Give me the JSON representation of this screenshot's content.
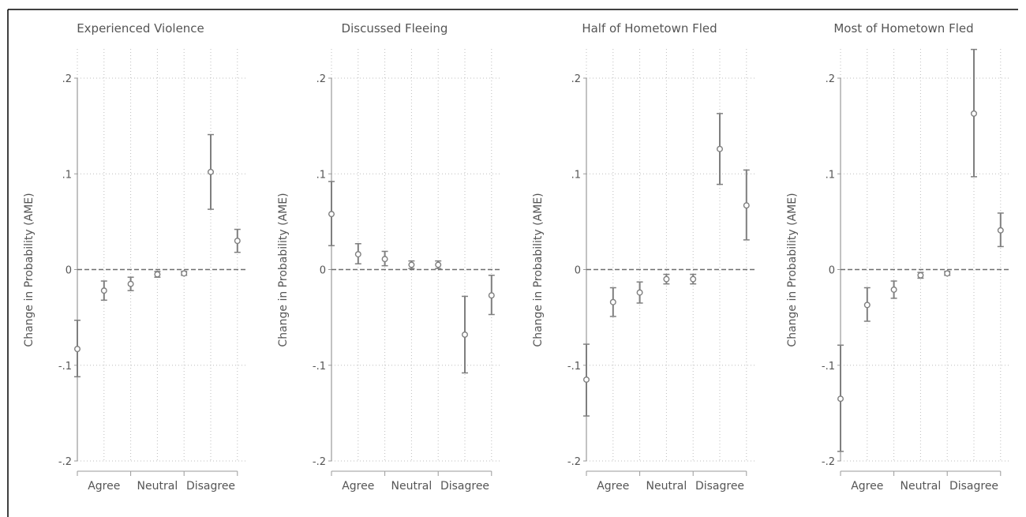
{
  "figure": {
    "colors": {
      "point": "#7f7f7f",
      "grid": "#bdbdbd",
      "axis": "#9a9a9a",
      "zero_line": "#6e6e6e",
      "text": "#555555"
    }
  },
  "chart_data": [
    {
      "type": "scatter",
      "title": "Experienced Violence",
      "ylabel": "Change in Probability (AME)",
      "ylim": [
        -0.2,
        0.2
      ],
      "yticks": [
        ".2",
        ".1",
        "0",
        "-.1",
        "-.2"
      ],
      "xcategory_labels": [
        "Agree",
        "Neutral",
        "Disagree"
      ],
      "grid": true,
      "reference_line": 0,
      "points": [
        {
          "est": -0.083,
          "lo": -0.112,
          "hi": -0.053
        },
        {
          "est": -0.022,
          "lo": -0.032,
          "hi": -0.012
        },
        {
          "est": -0.015,
          "lo": -0.022,
          "hi": -0.008
        },
        {
          "est": -0.005,
          "lo": -0.008,
          "hi": -0.002
        },
        {
          "est": -0.004,
          "lo": -0.006,
          "hi": -0.002
        },
        {
          "est": 0.102,
          "lo": 0.063,
          "hi": 0.141
        },
        {
          "est": 0.03,
          "lo": 0.018,
          "hi": 0.042
        }
      ]
    },
    {
      "type": "scatter",
      "title": "Discussed Fleeing",
      "ylabel": "Change in Probability (AME)",
      "ylim": [
        -0.2,
        0.2
      ],
      "yticks": [
        ".2",
        ".1",
        "0",
        "-.1",
        "-.2"
      ],
      "xcategory_labels": [
        "Agree",
        "Neutral",
        "Disagree"
      ],
      "grid": true,
      "reference_line": 0,
      "points": [
        {
          "est": 0.058,
          "lo": 0.025,
          "hi": 0.092
        },
        {
          "est": 0.016,
          "lo": 0.006,
          "hi": 0.027
        },
        {
          "est": 0.011,
          "lo": 0.004,
          "hi": 0.019
        },
        {
          "est": 0.005,
          "lo": 0.001,
          "hi": 0.009
        },
        {
          "est": 0.005,
          "lo": 0.001,
          "hi": 0.009
        },
        {
          "est": -0.068,
          "lo": -0.108,
          "hi": -0.028
        },
        {
          "est": -0.027,
          "lo": -0.047,
          "hi": -0.006
        }
      ]
    },
    {
      "type": "scatter",
      "title": "Half of Hometown Fled",
      "ylabel": "Change in Probability (AME)",
      "ylim": [
        -0.2,
        0.2
      ],
      "yticks": [
        ".2",
        ".1",
        "0",
        "-.1",
        "-.2"
      ],
      "xcategory_labels": [
        "Agree",
        "Neutral",
        "Disagree"
      ],
      "grid": true,
      "reference_line": 0,
      "points": [
        {
          "est": -0.115,
          "lo": -0.153,
          "hi": -0.078
        },
        {
          "est": -0.034,
          "lo": -0.049,
          "hi": -0.019
        },
        {
          "est": -0.024,
          "lo": -0.035,
          "hi": -0.013
        },
        {
          "est": -0.01,
          "lo": -0.015,
          "hi": -0.005
        },
        {
          "est": -0.01,
          "lo": -0.015,
          "hi": -0.005
        },
        {
          "est": 0.126,
          "lo": 0.089,
          "hi": 0.163
        },
        {
          "est": 0.067,
          "lo": 0.031,
          "hi": 0.104
        }
      ]
    },
    {
      "type": "scatter",
      "title": "Most of Hometown Fled",
      "ylabel": "Change in Probability (AME)",
      "ylim": [
        -0.2,
        0.2
      ],
      "yticks": [
        ".2",
        ".1",
        "0",
        "-.1",
        "-.2"
      ],
      "xcategory_labels": [
        "Agree",
        "Neutral",
        "Disagree"
      ],
      "grid": true,
      "reference_line": 0,
      "points": [
        {
          "est": -0.135,
          "lo": -0.19,
          "hi": -0.079
        },
        {
          "est": -0.037,
          "lo": -0.054,
          "hi": -0.019
        },
        {
          "est": -0.021,
          "lo": -0.03,
          "hi": -0.012
        },
        {
          "est": -0.006,
          "lo": -0.009,
          "hi": -0.003
        },
        {
          "est": -0.004,
          "lo": -0.006,
          "hi": -0.002
        },
        {
          "est": 0.163,
          "lo": 0.097,
          "hi": 0.23
        },
        {
          "est": 0.041,
          "lo": 0.024,
          "hi": 0.059
        }
      ]
    }
  ]
}
